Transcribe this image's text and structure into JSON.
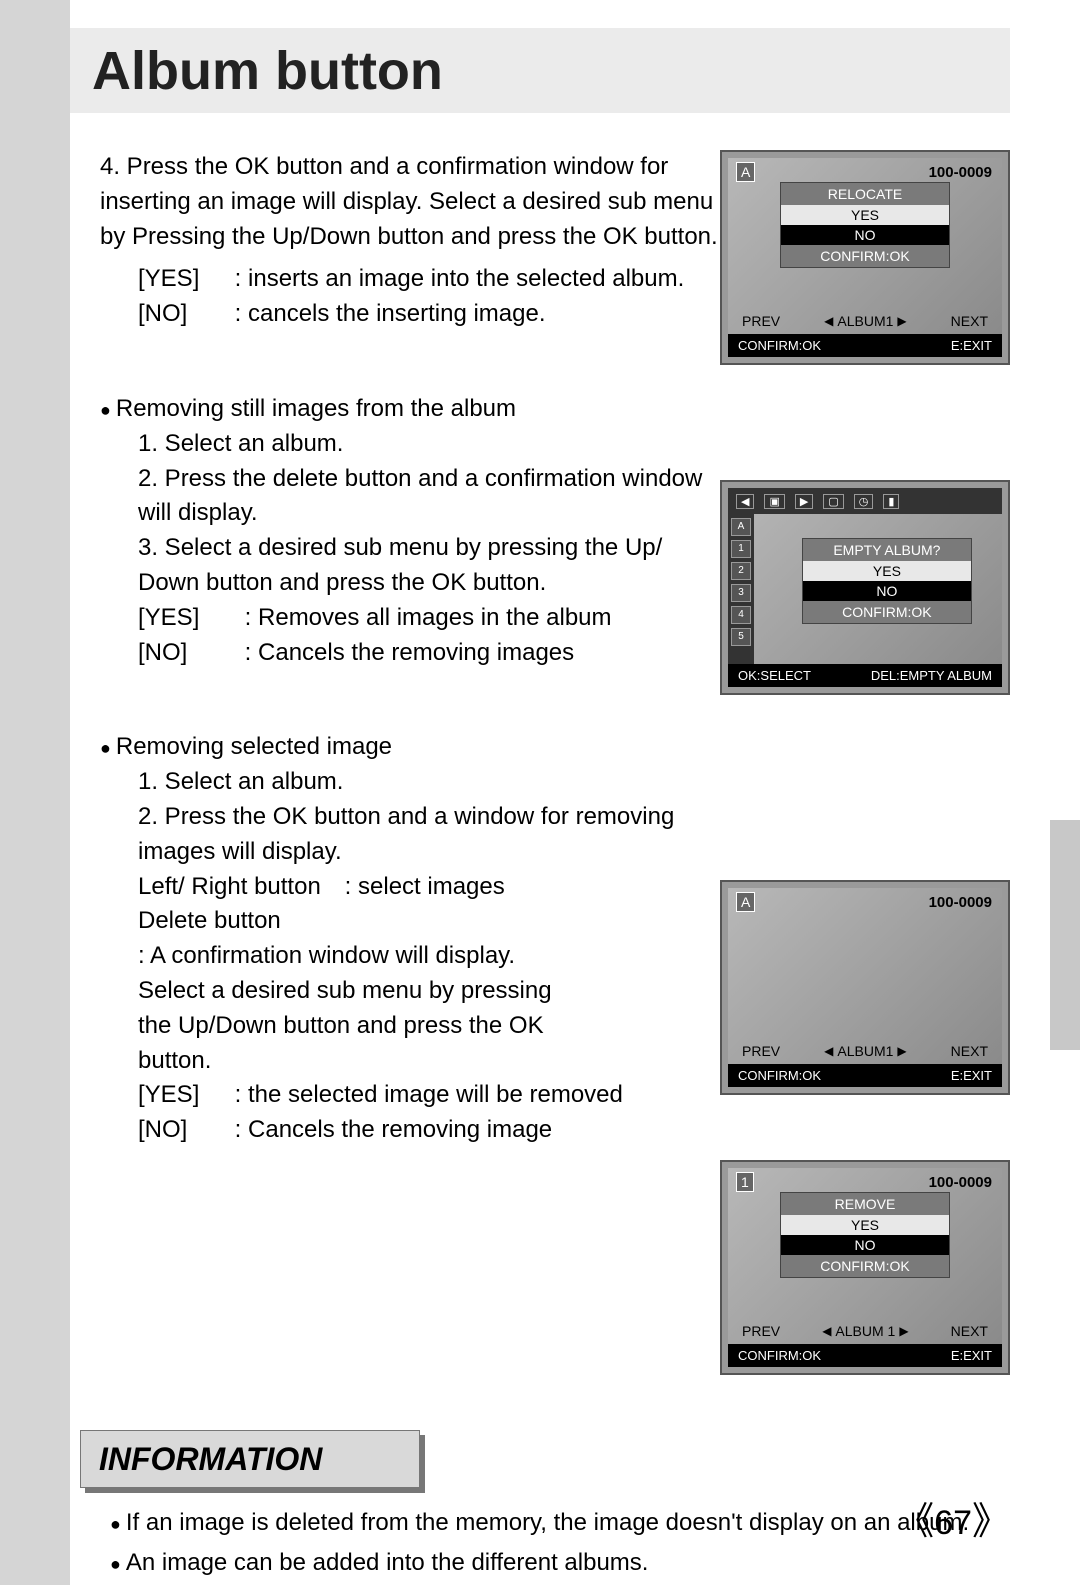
{
  "page": {
    "title": "Album button",
    "info_heading": "INFORMATION",
    "page_number": "67",
    "bracket_left": "《",
    "bracket_right": "》"
  },
  "block1": {
    "step4": "4. Press the OK button and a confirmation window for inserting an image will display. Select a desired sub menu by Pressing the Up/Down button and press the OK button.",
    "yes_key": "[YES]",
    "yes_val": ": inserts an image into the selected album.",
    "no_key": "[NO]",
    "no_val": ": cancels the inserting image."
  },
  "block2": {
    "heading": "Removing still images from the album",
    "s1": "1. Select an album.",
    "s2": "2. Press the delete button and a confirmation window will display.",
    "s3": "3. Select a desired sub menu by pressing the Up/ Down button and press the OK button.",
    "yes_key": "[YES]",
    "yes_val": ": Removes all images in the album",
    "no_key": "[NO]",
    "no_val": ": Cancels the removing images"
  },
  "block3": {
    "heading": "Removing selected image",
    "s1": "1. Select an album.",
    "s2": "2. Press the OK button and a window for removing images will display.",
    "lr_key": "Left/ Right button",
    "lr_val": ": select images",
    "del_key": "Delete button",
    "del_val": ": A confirmation window will display. Select a desired sub menu by pressing the Up/Down button and press the OK button.",
    "yes_key": "[YES]",
    "yes_val": ": the selected image will be removed",
    "no_key": "[NO]",
    "no_val": ": Cancels the removing image"
  },
  "info": {
    "b1": "If an image is deleted from the memory, the image doesn't display on an album.",
    "b2": "An image can be added into the different albums."
  },
  "lcd": {
    "file_id": "100-0009",
    "icon_A": "A",
    "icon_1": "1",
    "relocate": "RELOCATE",
    "empty_album": "EMPTY ALBUM?",
    "remove": "REMOVE",
    "yes": "YES",
    "no": "NO",
    "confirm_ok": "CONFIRM:OK",
    "prev": "PREV",
    "next": "NEXT",
    "album1": "ALBUM1",
    "album1_sp": "ALBUM 1",
    "footer_confirm": "CONFIRM:OK",
    "footer_exit": "E:EXIT",
    "footer_okselect": "OK:SELECT",
    "footer_delempty": "DEL:EMPTY ALBUM",
    "tri_left": "◀",
    "tri_right": "▶",
    "tri_up": "▲",
    "tri_down": "▼"
  }
}
